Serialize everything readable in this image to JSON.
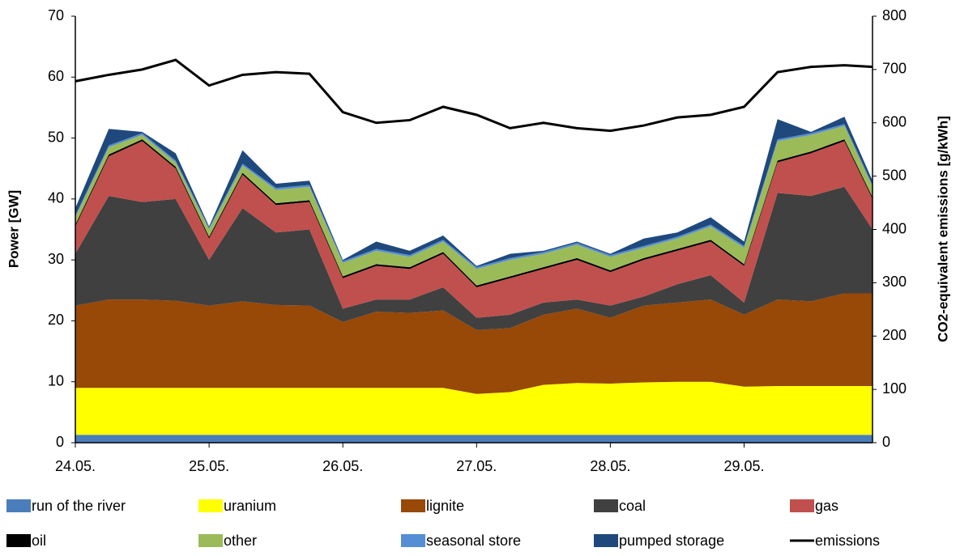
{
  "chart_data": {
    "type": "stacked_area",
    "ylabel": "Power [GW]",
    "y2label": "CO2-equivalent emissions  [g/kWh]",
    "x": [
      0,
      0.25,
      0.5,
      0.75,
      1,
      1.25,
      1.5,
      1.75,
      2,
      2.25,
      2.5,
      2.75,
      3,
      3.25,
      3.5,
      3.75,
      4,
      4.25,
      4.5,
      4.75,
      5,
      5.25,
      5.5,
      5.75,
      5.96
    ],
    "xlim": [
      0,
      5.96
    ],
    "xticks": [
      {
        "value": 0,
        "label": "24.05."
      },
      {
        "value": 1,
        "label": "25.05."
      },
      {
        "value": 2,
        "label": "26.05."
      },
      {
        "value": 3,
        "label": "27.05."
      },
      {
        "value": 4,
        "label": "28.05."
      },
      {
        "value": 5,
        "label": "29.05."
      }
    ],
    "ylim": [
      0,
      70
    ],
    "yticks": [
      0,
      10,
      20,
      30,
      40,
      50,
      60,
      70
    ],
    "y2lim": [
      0,
      800
    ],
    "y2ticks": [
      0,
      100,
      200,
      300,
      400,
      500,
      600,
      700,
      800
    ],
    "series": [
      {
        "name": "run of the river",
        "color": "#4a7ebb",
        "values": [
          1.3,
          1.3,
          1.3,
          1.3,
          1.3,
          1.3,
          1.3,
          1.3,
          1.3,
          1.3,
          1.3,
          1.3,
          1.3,
          1.3,
          1.3,
          1.3,
          1.3,
          1.3,
          1.3,
          1.3,
          1.3,
          1.3,
          1.3,
          1.3,
          1.3
        ]
      },
      {
        "name": "uranium",
        "color": "#ffff00",
        "values": [
          7.7,
          7.7,
          7.7,
          7.7,
          7.7,
          7.7,
          7.7,
          7.7,
          7.7,
          7.7,
          7.7,
          7.7,
          6.7,
          7.0,
          8.2,
          8.5,
          8.4,
          8.6,
          8.7,
          8.7,
          7.9,
          8.0,
          8.0,
          8.0,
          8.0
        ]
      },
      {
        "name": "lignite",
        "color": "#984807",
        "values": [
          13.5,
          14.5,
          14.5,
          14.3,
          13.5,
          14.2,
          13.6,
          13.5,
          10.8,
          12.5,
          12.3,
          12.7,
          10.5,
          10.5,
          11.5,
          12.2,
          10.8,
          12.6,
          13,
          13.5,
          11.8,
          14.2,
          13.9,
          15.2,
          15.2
        ]
      },
      {
        "name": "coal",
        "color": "#404040",
        "values": [
          8.5,
          17,
          16,
          16.7,
          7.5,
          15.3,
          11.9,
          12.5,
          2.2,
          2,
          2.2,
          3.8,
          2,
          2.2,
          2,
          1.5,
          2,
          1.5,
          3,
          4,
          2,
          17.5,
          17.3,
          17.5,
          10.5
        ]
      },
      {
        "name": "gas",
        "color": "#c0504d",
        "values": [
          4.5,
          6.5,
          10,
          5,
          3.5,
          5.5,
          4.5,
          4.5,
          5,
          5.5,
          5,
          5.5,
          5,
          6,
          5.5,
          6.5,
          5.5,
          6,
          5.5,
          5.5,
          6,
          5,
          7,
          7.5,
          5
        ]
      },
      {
        "name": "oil",
        "color": "#000000",
        "values": [
          0.3,
          0.3,
          0.3,
          0.3,
          0.3,
          0.3,
          0.3,
          0.3,
          0.3,
          0.3,
          0.3,
          0.3,
          0.3,
          0.3,
          0.3,
          0.3,
          0.3,
          0.3,
          0.3,
          0.3,
          0.3,
          0.3,
          0.3,
          0.3,
          0.3
        ]
      },
      {
        "name": "other",
        "color": "#9bbb59",
        "values": [
          1.2,
          1.2,
          0.7,
          0.7,
          1.2,
          1.2,
          2.2,
          2.2,
          2.2,
          2.2,
          1.7,
          1.7,
          2.7,
          2.7,
          2.2,
          2.2,
          2.2,
          1.7,
          1.7,
          2.2,
          2.7,
          3.2,
          2.7,
          2.2,
          1.7
        ]
      },
      {
        "name": "seasonal store",
        "color": "#558ed5",
        "values": [
          0.3,
          0.3,
          0.3,
          0.3,
          0.3,
          0.3,
          0.3,
          0.3,
          0.3,
          0.3,
          0.3,
          0.3,
          0.3,
          0.3,
          0.3,
          0.3,
          0.3,
          0.3,
          0.3,
          0.3,
          0.3,
          0.3,
          0.3,
          0.3,
          0.3
        ]
      },
      {
        "name": "pumped storage",
        "color": "#1f497d",
        "values": [
          1.2,
          2.7,
          0.2,
          1.2,
          0.2,
          2.2,
          0.7,
          0.7,
          0.2,
          1.2,
          0.7,
          0.7,
          0.2,
          0.7,
          0.2,
          0.2,
          0.2,
          1.2,
          0.7,
          1.2,
          0.7,
          3.3,
          0.2,
          1.2,
          0.7
        ]
      },
      {
        "name": "emissions",
        "color": "#000000",
        "axis": "y2",
        "values": [
          678,
          690,
          700,
          718,
          670,
          690,
          695,
          692,
          620,
          600,
          605,
          630,
          615,
          590,
          600,
          590,
          585,
          595,
          610,
          615,
          630,
          695,
          705,
          708,
          705
        ]
      }
    ]
  }
}
